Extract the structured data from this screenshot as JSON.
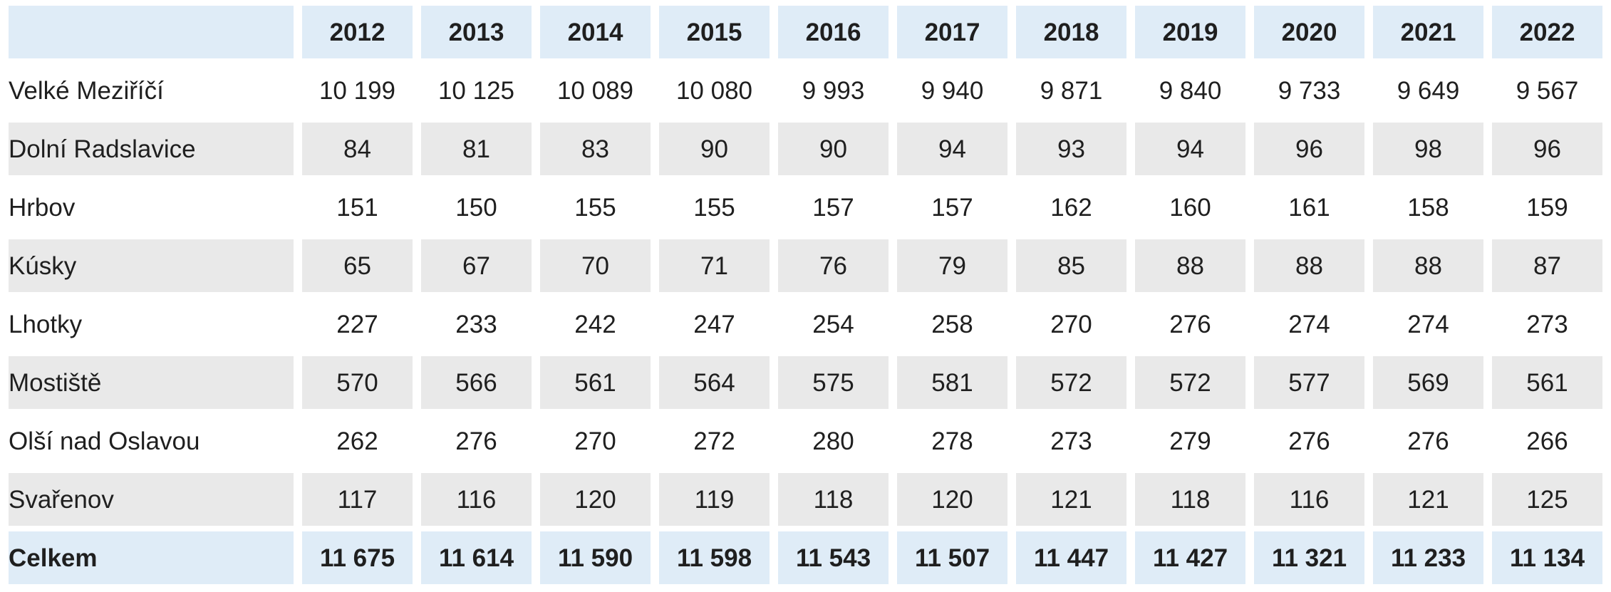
{
  "table": {
    "corner_label": "",
    "columns": [
      "2012",
      "2013",
      "2014",
      "2015",
      "2016",
      "2017",
      "2018",
      "2019",
      "2020",
      "2021",
      "2022"
    ],
    "rows": [
      {
        "label": "Velké Meziříčí",
        "variant": "white",
        "values": [
          "10 199",
          "10 125",
          "10 089",
          "10 080",
          "9 993",
          "9 940",
          "9 871",
          "9 840",
          "9 733",
          "9 649",
          "9 567"
        ]
      },
      {
        "label": "Dolní Radslavice",
        "variant": "gray",
        "values": [
          "84",
          "81",
          "83",
          "90",
          "90",
          "94",
          "93",
          "94",
          "96",
          "98",
          "96"
        ]
      },
      {
        "label": "Hrbov",
        "variant": "white",
        "values": [
          "151",
          "150",
          "155",
          "155",
          "157",
          "157",
          "162",
          "160",
          "161",
          "158",
          "159"
        ]
      },
      {
        "label": "Kúsky",
        "variant": "gray",
        "values": [
          "65",
          "67",
          "70",
          "71",
          "76",
          "79",
          "85",
          "88",
          "88",
          "88",
          "87"
        ]
      },
      {
        "label": "Lhotky",
        "variant": "white",
        "values": [
          "227",
          "233",
          "242",
          "247",
          "254",
          "258",
          "270",
          "276",
          "274",
          "274",
          "273"
        ]
      },
      {
        "label": "Mostiště",
        "variant": "gray",
        "values": [
          "570",
          "566",
          "561",
          "564",
          "575",
          "581",
          "572",
          "572",
          "577",
          "569",
          "561"
        ]
      },
      {
        "label": "Olší nad Oslavou",
        "variant": "white",
        "values": [
          "262",
          "276",
          "270",
          "272",
          "280",
          "278",
          "273",
          "279",
          "276",
          "276",
          "266"
        ]
      },
      {
        "label": "Svařenov",
        "variant": "gray",
        "values": [
          "117",
          "116",
          "120",
          "119",
          "118",
          "120",
          "121",
          "118",
          "116",
          "121",
          "125"
        ]
      },
      {
        "label": "Celkem",
        "variant": "total",
        "values": [
          "11 675",
          "11 614",
          "11 590",
          "11 598",
          "11 543",
          "11 507",
          "11 447",
          "11 427",
          "11 321",
          "11 233",
          "11 134"
        ]
      }
    ]
  },
  "colors": {
    "header_bg": "#dfecf7",
    "gray_row_bg": "#e9e9e9",
    "white_row_bg": "#ffffff",
    "text": "#1f1f1f"
  },
  "chart_data": {
    "type": "table",
    "categories": [
      2012,
      2013,
      2014,
      2015,
      2016,
      2017,
      2018,
      2019,
      2020,
      2021,
      2022
    ],
    "series": [
      {
        "name": "Velké Meziříčí",
        "values": [
          10199,
          10125,
          10089,
          10080,
          9993,
          9940,
          9871,
          9840,
          9733,
          9649,
          9567
        ]
      },
      {
        "name": "Dolní Radslavice",
        "values": [
          84,
          81,
          83,
          90,
          90,
          94,
          93,
          94,
          96,
          98,
          96
        ]
      },
      {
        "name": "Hrbov",
        "values": [
          151,
          150,
          155,
          155,
          157,
          157,
          162,
          160,
          161,
          158,
          159
        ]
      },
      {
        "name": "Kúsky",
        "values": [
          65,
          67,
          70,
          71,
          76,
          79,
          85,
          88,
          88,
          88,
          87
        ]
      },
      {
        "name": "Lhotky",
        "values": [
          227,
          233,
          242,
          247,
          254,
          258,
          270,
          276,
          274,
          274,
          273
        ]
      },
      {
        "name": "Mostiště",
        "values": [
          570,
          566,
          561,
          564,
          575,
          581,
          572,
          572,
          577,
          569,
          561
        ]
      },
      {
        "name": "Olší nad Oslavou",
        "values": [
          262,
          276,
          270,
          272,
          280,
          278,
          273,
          279,
          276,
          276,
          266
        ]
      },
      {
        "name": "Svařenov",
        "values": [
          117,
          116,
          120,
          119,
          118,
          120,
          121,
          118,
          116,
          121,
          125
        ]
      },
      {
        "name": "Celkem",
        "values": [
          11675,
          11614,
          11590,
          11598,
          11543,
          11507,
          11447,
          11427,
          11321,
          11233,
          11134
        ]
      }
    ],
    "title": "",
    "xlabel": "",
    "ylabel": "",
    "notes": "Rows = parts of the municipality; Celkem = total; zebra striping gray/white; header and total rows highlighted light blue"
  }
}
